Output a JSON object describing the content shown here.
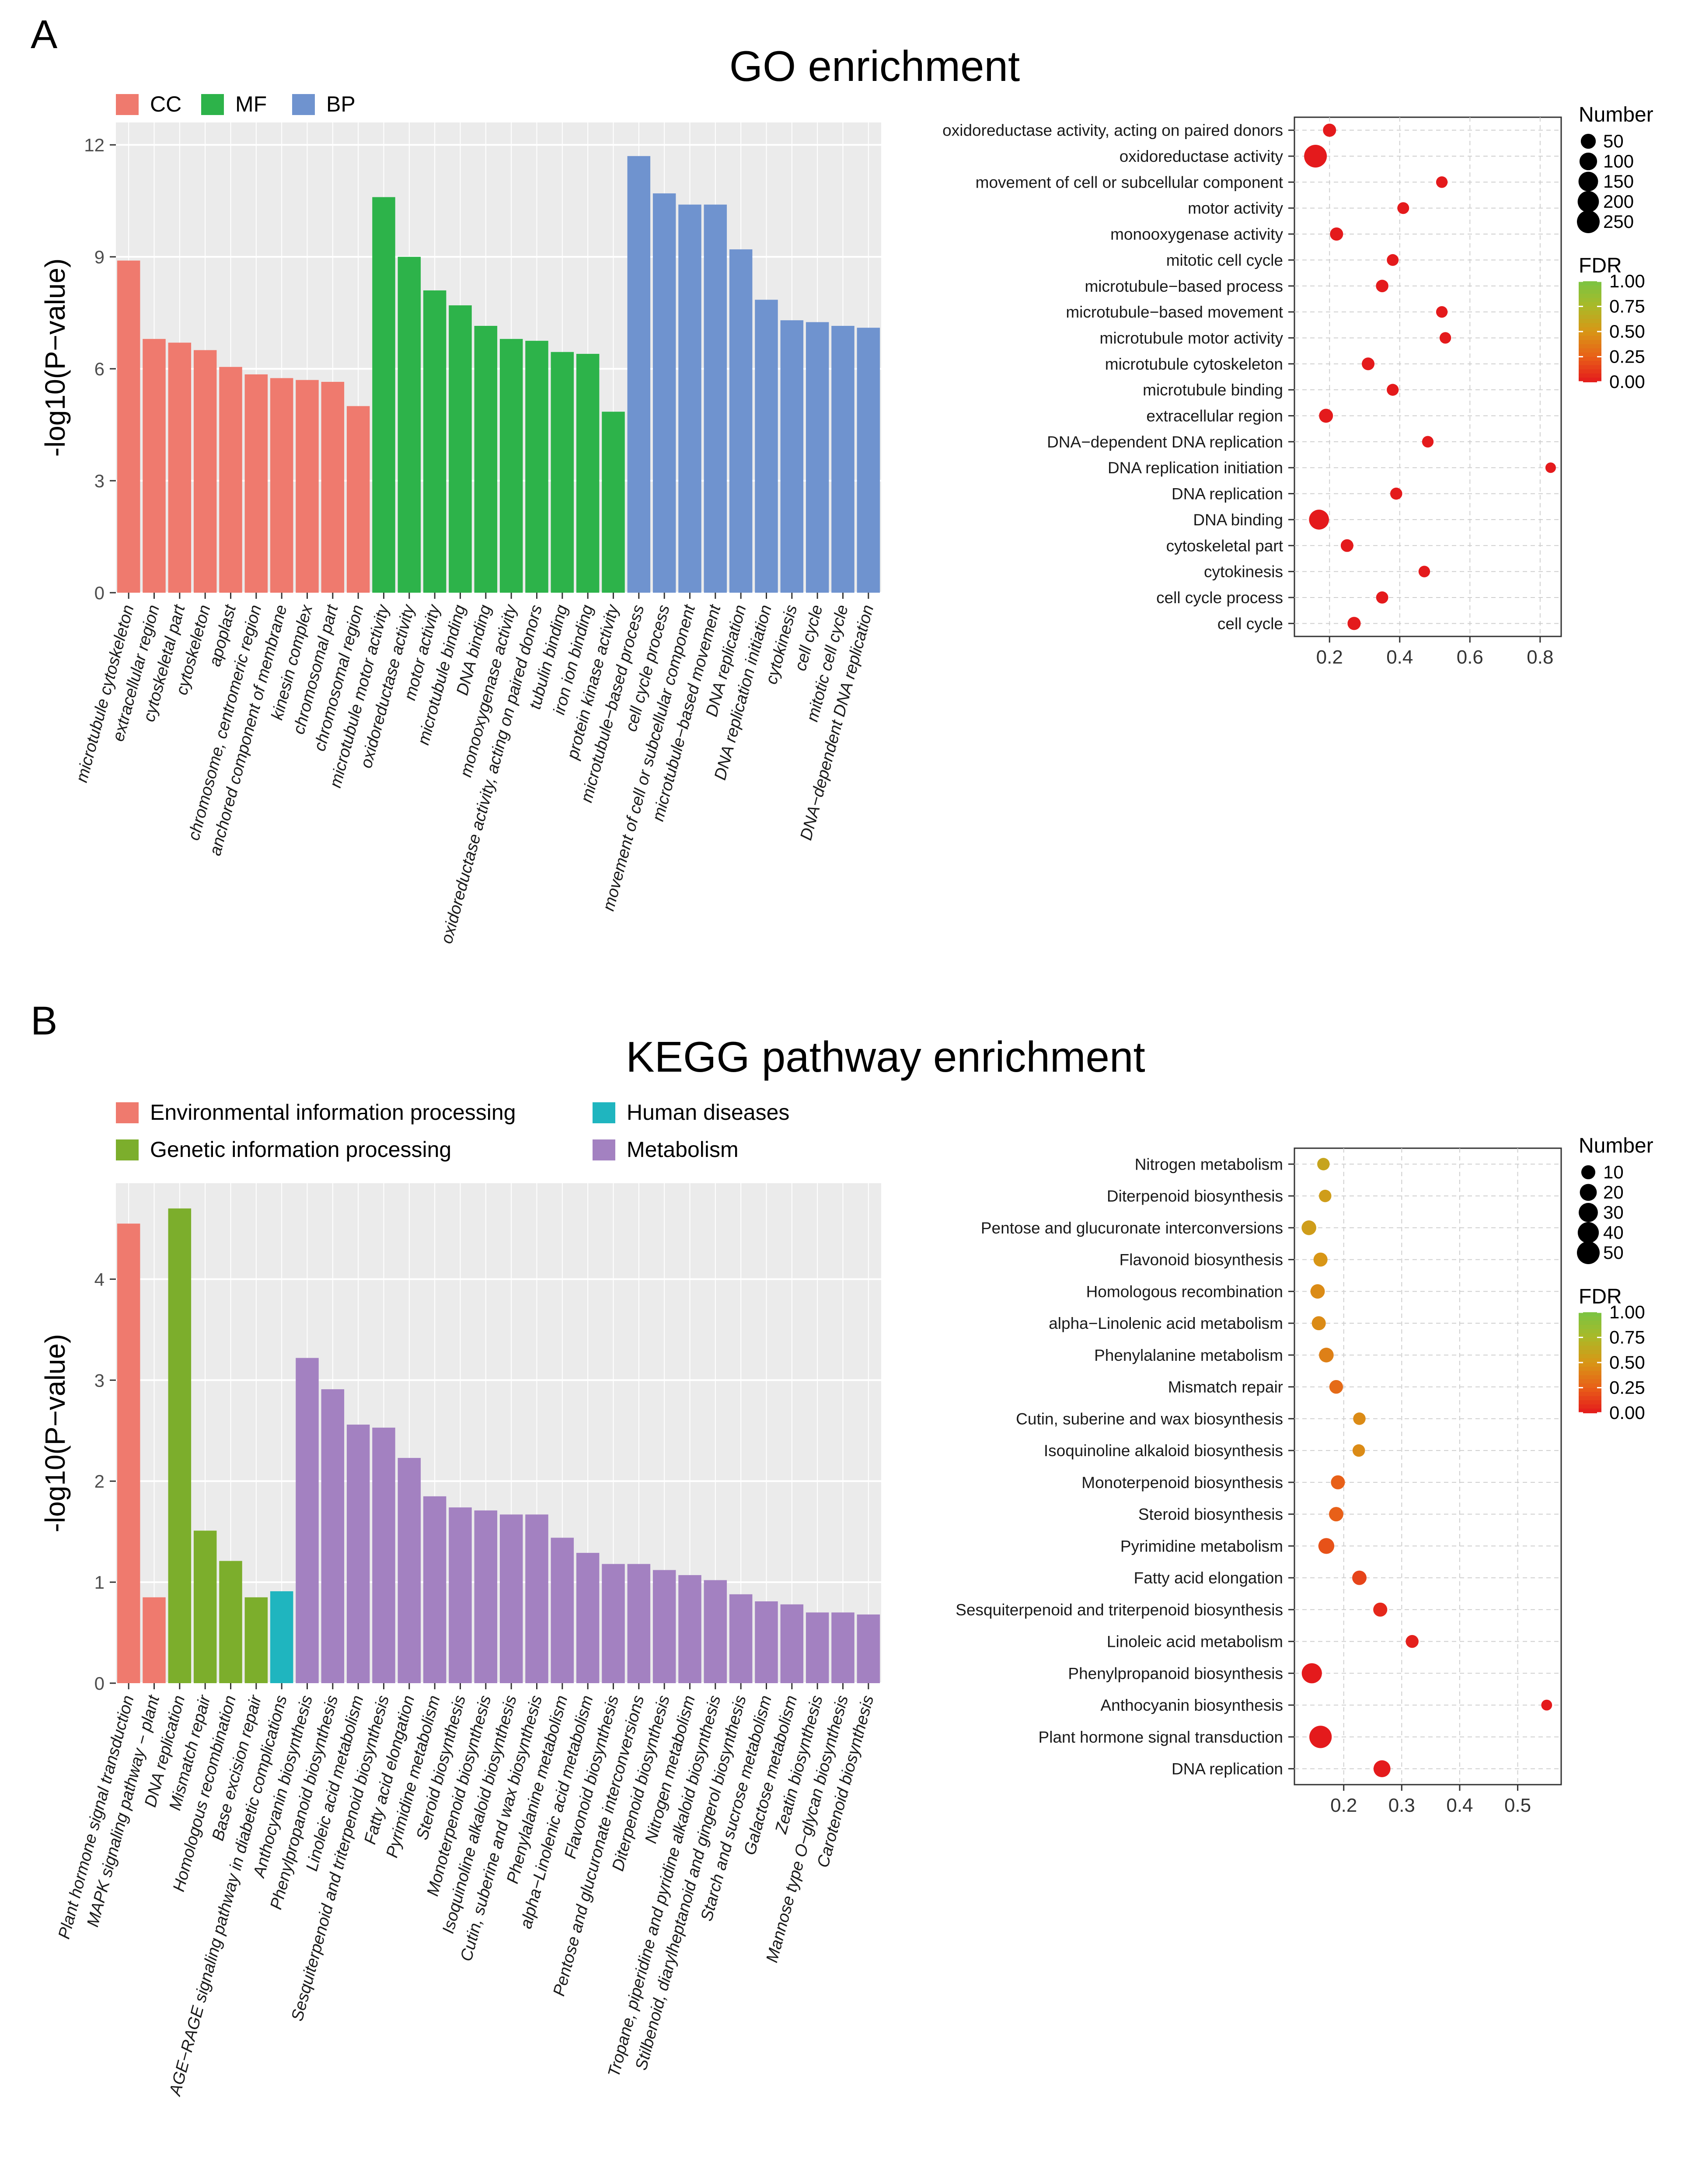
{
  "chart_data": [
    {
      "type": "bar",
      "panel": "A",
      "title": "GO enrichment",
      "ylabel": "-log10(P−value)",
      "ylim": [
        0,
        12.6
      ],
      "yticks": [
        0,
        3,
        6,
        9,
        12
      ],
      "legend": [
        {
          "name": "CC",
          "color": "#EF7A6E"
        },
        {
          "name": "MF",
          "color": "#2DB34A"
        },
        {
          "name": "BP",
          "color": "#6F93CF"
        }
      ],
      "bars": [
        {
          "label": "microtubule cytoskeleton",
          "value": 8.9,
          "group": 0
        },
        {
          "label": "extracellular region",
          "value": 6.8,
          "group": 0
        },
        {
          "label": "cytoskeletal part",
          "value": 6.7,
          "group": 0
        },
        {
          "label": "cytoskeleton",
          "value": 6.5,
          "group": 0
        },
        {
          "label": "apoplast",
          "value": 6.05,
          "group": 0
        },
        {
          "label": "chromosome, centromeric region",
          "value": 5.85,
          "group": 0
        },
        {
          "label": "anchored component of membrane",
          "value": 5.75,
          "group": 0
        },
        {
          "label": "kinesin complex",
          "value": 5.7,
          "group": 0
        },
        {
          "label": "chromosomal part",
          "value": 5.65,
          "group": 0
        },
        {
          "label": "chromosomal region",
          "value": 5.0,
          "group": 0
        },
        {
          "label": "microtubule motor activity",
          "value": 10.6,
          "group": 1
        },
        {
          "label": "oxidoreductase activity",
          "value": 9.0,
          "group": 1
        },
        {
          "label": "motor activity",
          "value": 8.1,
          "group": 1
        },
        {
          "label": "microtubule binding",
          "value": 7.7,
          "group": 1
        },
        {
          "label": "DNA binding",
          "value": 7.15,
          "group": 1
        },
        {
          "label": "monooxygenase activity",
          "value": 6.8,
          "group": 1
        },
        {
          "label": "oxidoreductase activity, acting on paired donors",
          "value": 6.75,
          "group": 1
        },
        {
          "label": "tubulin binding",
          "value": 6.45,
          "group": 1
        },
        {
          "label": "iron ion binding",
          "value": 6.4,
          "group": 1
        },
        {
          "label": "protein kinase activity",
          "value": 4.85,
          "group": 1
        },
        {
          "label": "microtubule−based process",
          "value": 11.7,
          "group": 2
        },
        {
          "label": "cell cycle process",
          "value": 10.7,
          "group": 2
        },
        {
          "label": "movement of cell or subcellular component",
          "value": 10.4,
          "group": 2
        },
        {
          "label": "microtubule−based movement",
          "value": 10.4,
          "group": 2
        },
        {
          "label": "DNA replication",
          "value": 9.2,
          "group": 2
        },
        {
          "label": "DNA replication initiation",
          "value": 7.85,
          "group": 2
        },
        {
          "label": "cytokinesis",
          "value": 7.3,
          "group": 2
        },
        {
          "label": "cell cycle",
          "value": 7.25,
          "group": 2
        },
        {
          "label": "mitotic cell cycle",
          "value": 7.15,
          "group": 2
        },
        {
          "label": "DNA−dependent DNA replication",
          "value": 7.1,
          "group": 2
        }
      ]
    },
    {
      "type": "scatter",
      "panel": "A",
      "xlim": [
        0.1,
        0.86
      ],
      "xticks": [
        0.2,
        0.4,
        0.6,
        0.8
      ],
      "size_legend": {
        "title": "Number",
        "values": [
          50,
          100,
          150,
          200,
          250
        ]
      },
      "color_legend": {
        "title": "FDR",
        "ticks": [
          "1.00",
          "0.75",
          "0.50",
          "0.25",
          "0.00"
        ]
      },
      "points": [
        {
          "label": "oxidoreductase activity, acting on paired donors",
          "x": 0.2,
          "number": 25,
          "fdr": 0.0
        },
        {
          "label": "oxidoreductase activity",
          "x": 0.16,
          "number": 250,
          "fdr": 0.0
        },
        {
          "label": "movement of cell or subcellular component",
          "x": 0.52,
          "number": 10,
          "fdr": 0.0
        },
        {
          "label": "motor activity",
          "x": 0.41,
          "number": 12,
          "fdr": 0.0
        },
        {
          "label": "monooxygenase activity",
          "x": 0.22,
          "number": 25,
          "fdr": 0.0
        },
        {
          "label": "mitotic cell cycle",
          "x": 0.38,
          "number": 12,
          "fdr": 0.0
        },
        {
          "label": "microtubule−based process",
          "x": 0.35,
          "number": 18,
          "fdr": 0.0
        },
        {
          "label": "microtubule−based movement",
          "x": 0.52,
          "number": 10,
          "fdr": 0.0
        },
        {
          "label": "microtubule motor activity",
          "x": 0.53,
          "number": 10,
          "fdr": 0.0
        },
        {
          "label": "microtubule cytoskeleton",
          "x": 0.31,
          "number": 20,
          "fdr": 0.0
        },
        {
          "label": "microtubule binding",
          "x": 0.38,
          "number": 13,
          "fdr": 0.0
        },
        {
          "label": "extracellular region",
          "x": 0.19,
          "number": 35,
          "fdr": 0.0
        },
        {
          "label": "DNA−dependent DNA replication",
          "x": 0.48,
          "number": 10,
          "fdr": 0.0
        },
        {
          "label": "DNA replication initiation",
          "x": 0.83,
          "number": 4,
          "fdr": 0.0
        },
        {
          "label": "DNA replication",
          "x": 0.39,
          "number": 14,
          "fdr": 0.0
        },
        {
          "label": "DNA binding",
          "x": 0.17,
          "number": 160,
          "fdr": 0.0
        },
        {
          "label": "cytoskeletal part",
          "x": 0.25,
          "number": 20,
          "fdr": 0.0
        },
        {
          "label": "cytokinesis",
          "x": 0.47,
          "number": 10,
          "fdr": 0.0
        },
        {
          "label": "cell cycle process",
          "x": 0.35,
          "number": 15,
          "fdr": 0.0
        },
        {
          "label": "cell cycle",
          "x": 0.27,
          "number": 25,
          "fdr": 0.0
        }
      ]
    },
    {
      "type": "bar",
      "panel": "B",
      "title": "KEGG pathway enrichment",
      "ylabel": "-log10(P−value)",
      "ylim": [
        0,
        4.95
      ],
      "yticks": [
        0,
        1,
        2,
        3,
        4
      ],
      "legend": [
        {
          "name": "Environmental information processing",
          "color": "#EF7A6E"
        },
        {
          "name": "Human diseases",
          "color": "#1FB5BF"
        },
        {
          "name": "Genetic information processing",
          "color": "#7CAE2C"
        },
        {
          "name": "Metabolism",
          "color": "#A381C1"
        }
      ],
      "bars": [
        {
          "label": "Plant hormone signal transduction",
          "value": 4.55,
          "group": 0
        },
        {
          "label": "MAPK signaling pathway − plant",
          "value": 0.85,
          "group": 0
        },
        {
          "label": "DNA replication",
          "value": 4.7,
          "group": 2
        },
        {
          "label": "Mismatch repair",
          "value": 1.51,
          "group": 2
        },
        {
          "label": "Homologous recombination",
          "value": 1.21,
          "group": 2
        },
        {
          "label": "Base excision repair",
          "value": 0.85,
          "group": 2
        },
        {
          "label": "AGE−RAGE signaling pathway in diabetic complications",
          "value": 0.91,
          "group": 1
        },
        {
          "label": "Anthocyanin biosynthesis",
          "value": 3.22,
          "group": 3
        },
        {
          "label": "Phenylpropanoid biosynthesis",
          "value": 2.91,
          "group": 3
        },
        {
          "label": "Linoleic acid metabolism",
          "value": 2.56,
          "group": 3
        },
        {
          "label": "Sesquiterpenoid and triterpenoid biosynthesis",
          "value": 2.53,
          "group": 3
        },
        {
          "label": "Fatty acid elongation",
          "value": 2.23,
          "group": 3
        },
        {
          "label": "Pyrimidine metabolism",
          "value": 1.85,
          "group": 3
        },
        {
          "label": "Steroid biosynthesis",
          "value": 1.74,
          "group": 3
        },
        {
          "label": "Monoterpenoid biosynthesis",
          "value": 1.71,
          "group": 3
        },
        {
          "label": "Isoquinoline alkaloid biosynthesis",
          "value": 1.67,
          "group": 3
        },
        {
          "label": "Cutin, suberine and wax biosynthesis",
          "value": 1.67,
          "group": 3
        },
        {
          "label": "Phenylalanine metabolism",
          "value": 1.44,
          "group": 3
        },
        {
          "label": "alpha−Linolenic acid metabolism",
          "value": 1.29,
          "group": 3
        },
        {
          "label": "Flavonoid biosynthesis",
          "value": 1.18,
          "group": 3
        },
        {
          "label": "Pentose and glucuronate interconversions",
          "value": 1.18,
          "group": 3
        },
        {
          "label": "Diterpenoid biosynthesis",
          "value": 1.12,
          "group": 3
        },
        {
          "label": "Nitrogen metabolism",
          "value": 1.07,
          "group": 3
        },
        {
          "label": "Tropane, piperidine and pyridine alkaloid biosynthesis",
          "value": 1.02,
          "group": 3
        },
        {
          "label": "Stilbenoid, diarylheptanoid and gingerol biosynthesis",
          "value": 0.88,
          "group": 3
        },
        {
          "label": "Starch and sucrose metabolism",
          "value": 0.81,
          "group": 3
        },
        {
          "label": "Galactose metabolism",
          "value": 0.78,
          "group": 3
        },
        {
          "label": "Zeatin biosynthesis",
          "value": 0.7,
          "group": 3
        },
        {
          "label": "Mannose type O−glycan biosynthesis",
          "value": 0.7,
          "group": 3
        },
        {
          "label": "Carotenoid biosynthesis",
          "value": 0.68,
          "group": 3
        }
      ]
    },
    {
      "type": "scatter",
      "panel": "B",
      "xlim": [
        0.115,
        0.575
      ],
      "xticks": [
        0.2,
        0.3,
        0.4,
        0.5
      ],
      "size_legend": {
        "title": "Number",
        "values": [
          10,
          20,
          30,
          40,
          50
        ]
      },
      "color_legend": {
        "title": "FDR",
        "ticks": [
          "1.00",
          "0.75",
          "0.50",
          "0.25",
          "0.00"
        ]
      },
      "points": [
        {
          "label": "Nitrogen metabolism",
          "x": 0.165,
          "number": 6,
          "fdr": 0.6
        },
        {
          "label": "Diterpenoid biosynthesis",
          "x": 0.168,
          "number": 6,
          "fdr": 0.55
        },
        {
          "label": "Pentose and glucuronate interconversions",
          "x": 0.14,
          "number": 12,
          "fdr": 0.55
        },
        {
          "label": "Flavonoid biosynthesis",
          "x": 0.16,
          "number": 10,
          "fdr": 0.5
        },
        {
          "label": "Homologous recombination",
          "x": 0.155,
          "number": 11,
          "fdr": 0.45
        },
        {
          "label": "alpha−Linolenic acid metabolism",
          "x": 0.157,
          "number": 10,
          "fdr": 0.45
        },
        {
          "label": "Phenylalanine metabolism",
          "x": 0.17,
          "number": 12,
          "fdr": 0.4
        },
        {
          "label": "Mismatch repair",
          "x": 0.187,
          "number": 9,
          "fdr": 0.3
        },
        {
          "label": "Cutin, suberine and wax biosynthesis",
          "x": 0.227,
          "number": 6,
          "fdr": 0.45
        },
        {
          "label": "Isoquinoline alkaloid biosynthesis",
          "x": 0.226,
          "number": 6,
          "fdr": 0.45
        },
        {
          "label": "Monoterpenoid biosynthesis",
          "x": 0.19,
          "number": 10,
          "fdr": 0.25
        },
        {
          "label": "Steroid biosynthesis",
          "x": 0.187,
          "number": 11,
          "fdr": 0.25
        },
        {
          "label": "Pyrimidine metabolism",
          "x": 0.17,
          "number": 16,
          "fdr": 0.2
        },
        {
          "label": "Fatty acid elongation",
          "x": 0.227,
          "number": 11,
          "fdr": 0.15
        },
        {
          "label": "Sesquiterpenoid and triterpenoid biosynthesis",
          "x": 0.263,
          "number": 10,
          "fdr": 0.05
        },
        {
          "label": "Linoleic acid metabolism",
          "x": 0.318,
          "number": 7,
          "fdr": 0.02
        },
        {
          "label": "Phenylpropanoid biosynthesis",
          "x": 0.145,
          "number": 35,
          "fdr": 0.0
        },
        {
          "label": "Anthocyanin biosynthesis",
          "x": 0.55,
          "number": 3,
          "fdr": 0.0
        },
        {
          "label": "Plant hormone signal transduction",
          "x": 0.16,
          "number": 48,
          "fdr": 0.0
        },
        {
          "label": "DNA replication",
          "x": 0.266,
          "number": 20,
          "fdr": 0.0
        }
      ]
    }
  ],
  "labels": {
    "panelA": "A",
    "panelB": "B"
  }
}
